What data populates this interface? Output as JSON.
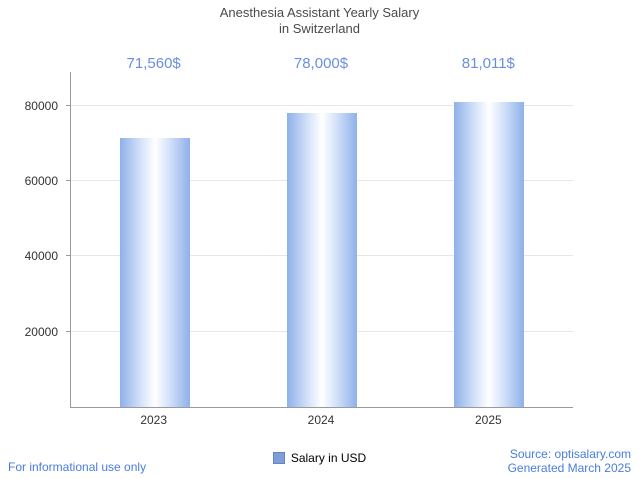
{
  "title": {
    "line1": "Anesthesia Assistant Yearly Salary",
    "line2": "in Switzerland"
  },
  "chart_data": {
    "type": "bar",
    "title": "Anesthesia Assistant Yearly Salary in Switzerland",
    "categories": [
      "2023",
      "2024",
      "2025"
    ],
    "values": [
      71560,
      78000,
      81011
    ],
    "value_labels": [
      "71,560$",
      "78,000$",
      "81,011$"
    ],
    "xlabel": "",
    "ylabel": "",
    "ylim": [
      0,
      89000
    ],
    "yticks": [
      20000,
      40000,
      60000,
      80000
    ],
    "ytick_labels": [
      "20000",
      "40000",
      "60000",
      "80000"
    ],
    "grid": "horizontal",
    "legend": {
      "label": "Salary in USD",
      "position": "bottom-center"
    }
  },
  "footer": {
    "left": "For informational use only",
    "source": "Source: optisalary.com",
    "generated": "Generated March 2025"
  },
  "colors": {
    "title_gray": "#4a4a4a",
    "value_label_blue": "#6b8de2",
    "footer_blue": "#4a7cdf",
    "bar_edge_blue": "#8fb0ea",
    "bar_center_white": "#ffffff",
    "legend_marker_blue": "#7f9dd9",
    "gridline_gray": "#e6e6e6",
    "axis_gray": "#9a9a9a"
  }
}
